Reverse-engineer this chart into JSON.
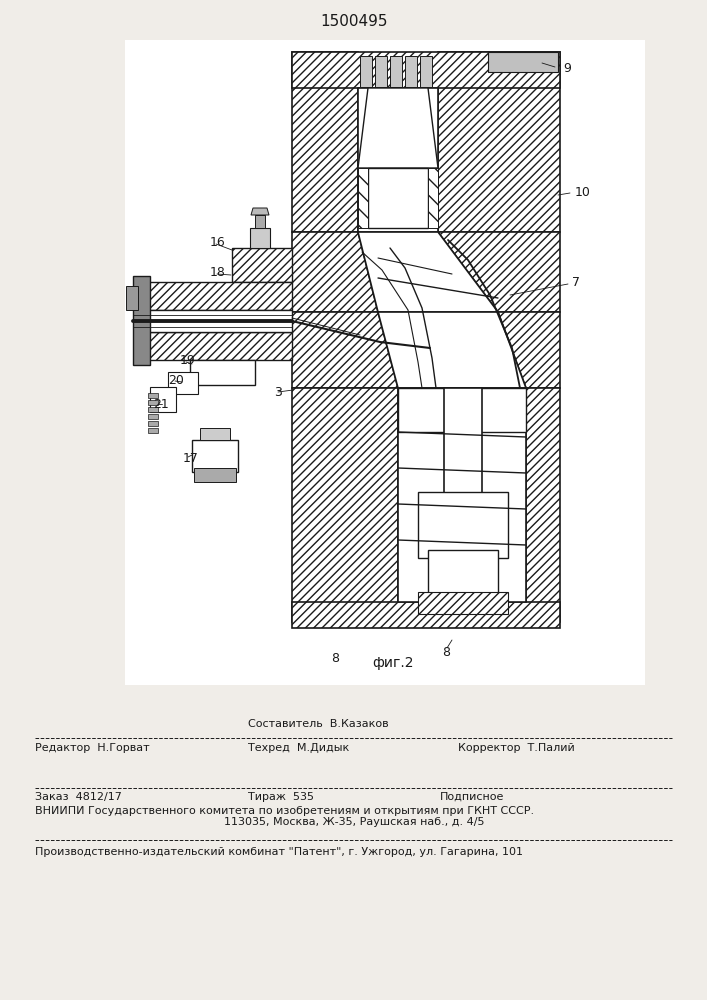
{
  "patent_number": "1500495",
  "fig_label": "фиг.2",
  "bg_color": "#f0ede8",
  "line_color": "#1a1a1a",
  "footer_sestavitel": "Составитель  В.Казаков",
  "footer_redaktor": "Редактор  Н.Горват",
  "footer_tehred": "Техред  М.Дидык",
  "footer_korrektor": "Корректор  Т.Палий",
  "footer_zakaz": "Заказ  4812/17",
  "footer_tirazh": "Тираж  535",
  "footer_podpisnoe": "Подписное",
  "footer_vniipи": "ВНИИПИ Государственного комитета по изобретениям и открытиям при ГКНТ СССР.",
  "footer_address": "113035, Москва, Ж-35, Раушская наб., д. 4/5",
  "footer_zavod": "Производственно-издательский комбинат \"Патент\", г. Ужгород, ул. Гагарина, 101"
}
